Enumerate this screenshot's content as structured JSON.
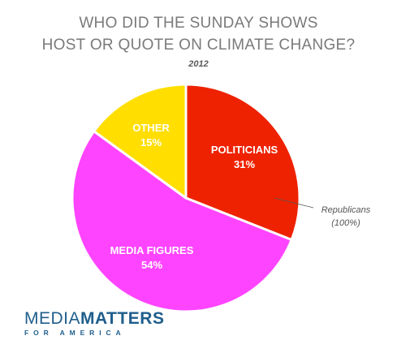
{
  "title_line1": "WHO DID THE SUNDAY SHOWS",
  "title_line2": "HOST OR QUOTE ON CLIMATE CHANGE?",
  "subtitle": "2012",
  "chart_data": {
    "type": "pie",
    "slices": [
      {
        "label": "POLITICIANS",
        "value": 31,
        "value_label": "31%",
        "color": "#ee2200"
      },
      {
        "label": "MEDIA FIGURES",
        "value": 54,
        "value_label": "54%",
        "color": "#ff44ff"
      },
      {
        "label": "OTHER",
        "value": 15,
        "value_label": "15%",
        "color": "#ffde00"
      }
    ],
    "annotation": {
      "line1": "Republicans",
      "line2": "(100%)",
      "slice": "POLITICIANS"
    },
    "legend": "none"
  },
  "logo": {
    "part1": "MEDIA",
    "part2": "MATTERS",
    "tagline": "FOR AMERICA"
  },
  "colors": {
    "title": "#7a7a7a",
    "logo": "#1f5e8c",
    "slice_border": "#ffffff"
  }
}
